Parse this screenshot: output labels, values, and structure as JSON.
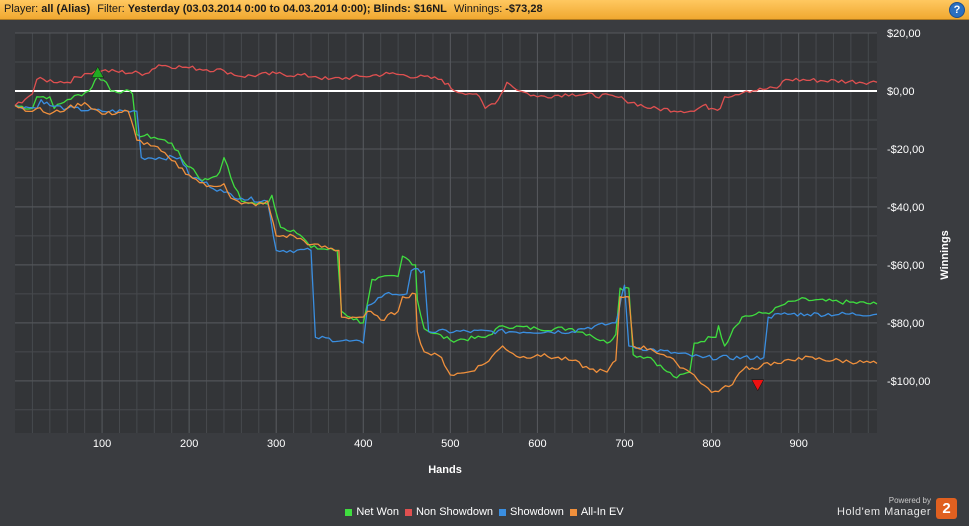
{
  "header": {
    "player_label": "Player:",
    "player_value": "all (Alias)",
    "filter_label": "Filter:",
    "filter_value": "Yesterday (03.03.2014 0:00 to 04.03.2014 0:00); Blinds: $16NL",
    "winnings_label": "Winnings:",
    "winnings_value": "-$73,28",
    "help_icon": "question-icon"
  },
  "chart_data": {
    "type": "line",
    "xlabel": "Hands",
    "ylabel": "Winnings",
    "xlim": [
      0,
      990
    ],
    "ylim": [
      -118,
      20
    ],
    "x_ticks": [
      100,
      200,
      300,
      400,
      500,
      600,
      700,
      800,
      900
    ],
    "y_ticks": [
      {
        "value": 20,
        "label": "$20,00"
      },
      {
        "value": 0,
        "label": "$0,00"
      },
      {
        "value": -20,
        "label": "-$20,00"
      },
      {
        "value": -40,
        "label": "-$40,00"
      },
      {
        "value": -60,
        "label": "-$60,00"
      },
      {
        "value": -80,
        "label": "-$80,00"
      },
      {
        "value": -100,
        "label": "-$100,00"
      }
    ],
    "grid": true,
    "legend_position": "bottom",
    "zero_line": true,
    "series": [
      {
        "name": "Net Won",
        "color": "#3fdd3f",
        "points": [
          [
            0,
            -5
          ],
          [
            20,
            -6
          ],
          [
            25,
            -2
          ],
          [
            40,
            -2
          ],
          [
            45,
            -6
          ],
          [
            60,
            -3
          ],
          [
            85,
            0
          ],
          [
            95,
            5
          ],
          [
            105,
            3
          ],
          [
            110,
            0
          ],
          [
            125,
            0
          ],
          [
            135,
            -1
          ],
          [
            140,
            -15
          ],
          [
            160,
            -16
          ],
          [
            180,
            -18
          ],
          [
            195,
            -25
          ],
          [
            205,
            -27
          ],
          [
            215,
            -31
          ],
          [
            225,
            -30
          ],
          [
            235,
            -28
          ],
          [
            240,
            -23
          ],
          [
            248,
            -30
          ],
          [
            260,
            -38
          ],
          [
            280,
            -39
          ],
          [
            290,
            -39
          ],
          [
            295,
            -36
          ],
          [
            305,
            -47
          ],
          [
            320,
            -48
          ],
          [
            335,
            -52
          ],
          [
            340,
            -54
          ],
          [
            370,
            -55
          ],
          [
            375,
            -76
          ],
          [
            385,
            -78
          ],
          [
            400,
            -80
          ],
          [
            405,
            -73
          ],
          [
            410,
            -65
          ],
          [
            440,
            -64
          ],
          [
            445,
            -57
          ],
          [
            460,
            -60
          ],
          [
            462,
            -72
          ],
          [
            470,
            -82
          ],
          [
            500,
            -86
          ],
          [
            540,
            -85
          ],
          [
            560,
            -81
          ],
          [
            600,
            -82
          ],
          [
            640,
            -82
          ],
          [
            660,
            -84
          ],
          [
            680,
            -87
          ],
          [
            690,
            -84
          ],
          [
            695,
            -68
          ],
          [
            705,
            -68
          ],
          [
            710,
            -91
          ],
          [
            730,
            -92
          ],
          [
            745,
            -96
          ],
          [
            760,
            -99
          ],
          [
            775,
            -97
          ],
          [
            780,
            -87
          ],
          [
            800,
            -85
          ],
          [
            805,
            -85
          ],
          [
            808,
            -81
          ],
          [
            815,
            -88
          ],
          [
            825,
            -82
          ],
          [
            835,
            -78
          ],
          [
            870,
            -76
          ],
          [
            880,
            -74
          ],
          [
            900,
            -72
          ],
          [
            990,
            -73.5
          ]
        ]
      },
      {
        "name": "Non Showdown",
        "color": "#e05050",
        "points": [
          [
            0,
            -5
          ],
          [
            20,
            -1
          ],
          [
            25,
            4
          ],
          [
            60,
            3
          ],
          [
            80,
            6
          ],
          [
            100,
            7
          ],
          [
            150,
            6
          ],
          [
            165,
            9
          ],
          [
            200,
            8
          ],
          [
            240,
            7
          ],
          [
            260,
            5
          ],
          [
            300,
            6
          ],
          [
            345,
            5
          ],
          [
            360,
            4
          ],
          [
            400,
            5
          ],
          [
            430,
            6
          ],
          [
            490,
            4
          ],
          [
            505,
            0
          ],
          [
            530,
            -1
          ],
          [
            540,
            -6
          ],
          [
            555,
            -3
          ],
          [
            565,
            3
          ],
          [
            580,
            0
          ],
          [
            600,
            -2
          ],
          [
            640,
            -1
          ],
          [
            690,
            -2
          ],
          [
            700,
            -3
          ],
          [
            730,
            -6
          ],
          [
            780,
            -7
          ],
          [
            790,
            -5
          ],
          [
            800,
            -6
          ],
          [
            810,
            -6
          ],
          [
            815,
            -2
          ],
          [
            840,
            0
          ],
          [
            875,
            1
          ],
          [
            885,
            4
          ],
          [
            990,
            3
          ]
        ]
      },
      {
        "name": "Showdown",
        "color": "#3a8ee0",
        "points": [
          [
            0,
            -5
          ],
          [
            25,
            -6
          ],
          [
            30,
            -3
          ],
          [
            40,
            -5
          ],
          [
            60,
            -6
          ],
          [
            100,
            -7
          ],
          [
            140,
            -7
          ],
          [
            145,
            -23
          ],
          [
            190,
            -23
          ],
          [
            200,
            -29
          ],
          [
            240,
            -35
          ],
          [
            260,
            -37
          ],
          [
            290,
            -38
          ],
          [
            300,
            -55
          ],
          [
            340,
            -55
          ],
          [
            345,
            -85
          ],
          [
            400,
            -87
          ],
          [
            405,
            -74
          ],
          [
            425,
            -70
          ],
          [
            450,
            -70
          ],
          [
            455,
            -62
          ],
          [
            470,
            -62
          ],
          [
            475,
            -83
          ],
          [
            640,
            -83
          ],
          [
            650,
            -82
          ],
          [
            690,
            -80
          ],
          [
            700,
            -67
          ],
          [
            705,
            -88
          ],
          [
            790,
            -92
          ],
          [
            860,
            -92
          ],
          [
            865,
            -78
          ],
          [
            880,
            -77
          ],
          [
            910,
            -77
          ],
          [
            990,
            -77
          ]
        ]
      },
      {
        "name": "All-In EV",
        "color": "#f0903c",
        "points": [
          [
            0,
            -5
          ],
          [
            20,
            -7
          ],
          [
            25,
            -6
          ],
          [
            40,
            -8
          ],
          [
            60,
            -6
          ],
          [
            80,
            -4
          ],
          [
            100,
            -8
          ],
          [
            130,
            -7
          ],
          [
            140,
            -17
          ],
          [
            160,
            -19
          ],
          [
            180,
            -24
          ],
          [
            200,
            -29
          ],
          [
            220,
            -33
          ],
          [
            240,
            -32
          ],
          [
            248,
            -37
          ],
          [
            260,
            -39
          ],
          [
            285,
            -39
          ],
          [
            290,
            -38
          ],
          [
            300,
            -50
          ],
          [
            320,
            -50
          ],
          [
            340,
            -53
          ],
          [
            372,
            -55
          ],
          [
            375,
            -78
          ],
          [
            400,
            -78
          ],
          [
            405,
            -76
          ],
          [
            420,
            -79
          ],
          [
            440,
            -76
          ],
          [
            445,
            -71
          ],
          [
            460,
            -70
          ],
          [
            462,
            -83
          ],
          [
            470,
            -90
          ],
          [
            490,
            -92
          ],
          [
            500,
            -98
          ],
          [
            520,
            -97
          ],
          [
            540,
            -94
          ],
          [
            560,
            -88
          ],
          [
            580,
            -92
          ],
          [
            600,
            -91
          ],
          [
            640,
            -93
          ],
          [
            660,
            -96
          ],
          [
            680,
            -97
          ],
          [
            690,
            -93
          ],
          [
            695,
            -71
          ],
          [
            705,
            -71
          ],
          [
            710,
            -88
          ],
          [
            730,
            -89
          ],
          [
            745,
            -91
          ],
          [
            760,
            -94
          ],
          [
            775,
            -97
          ],
          [
            780,
            -98
          ],
          [
            800,
            -104
          ],
          [
            820,
            -102
          ],
          [
            840,
            -95
          ],
          [
            850,
            -96
          ],
          [
            860,
            -94
          ],
          [
            880,
            -94
          ],
          [
            900,
            -92
          ],
          [
            990,
            -94
          ]
        ]
      }
    ],
    "markers": [
      {
        "x": 95,
        "y": 6,
        "shape": "triangle-up",
        "color": "#22aa22"
      },
      {
        "x": 853,
        "y": -101,
        "shape": "triangle-down",
        "color": "#ee1111"
      }
    ]
  },
  "legend": [
    {
      "label": "Net Won",
      "color": "#3fdd3f"
    },
    {
      "label": "Non Showdown",
      "color": "#e05050"
    },
    {
      "label": "Showdown",
      "color": "#3a8ee0"
    },
    {
      "label": "All-In EV",
      "color": "#f0903c"
    }
  ],
  "branding": {
    "powered_by": "Powered by",
    "name": "Hold'em Manager",
    "badge": "2"
  }
}
